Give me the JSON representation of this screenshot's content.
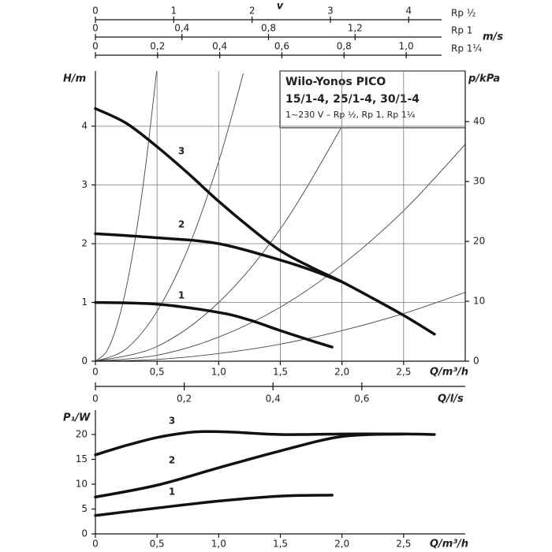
{
  "chart_data": [
    {
      "type": "line",
      "title": "Wilo-Yonos PICO",
      "subtitle": "15/1-4, 25/1-4, 30/1-4",
      "note": "1~230 V – Rp ½, Rp 1, Rp 1¼",
      "xlabel": "Q/m³/h",
      "ylabel": "H/m",
      "y2label": "p/kPa",
      "xlim": [
        0,
        3
      ],
      "xticks": [
        0,
        {
          "value": 0.5,
          "label": "0,5"
        },
        {
          "value": 1,
          "label": "1,0"
        },
        {
          "value": 1.5,
          "label": "1,5"
        },
        {
          "value": 2,
          "label": "2,0"
        },
        {
          "value": 2.5,
          "label": "2,5"
        }
      ],
      "ylim": [
        0,
        5
      ],
      "yticks": [
        0,
        1,
        2,
        3,
        4
      ],
      "y2lim": [
        0,
        49.05
      ],
      "y2ticks": [
        0,
        10,
        20,
        30,
        40
      ],
      "grid": true,
      "series": [
        {
          "name": "1",
          "color": "#111111",
          "x": [
            0,
            0.5,
            1,
            1.25,
            1.5,
            1.75,
            1.92
          ],
          "values": [
            1.0,
            0.97,
            0.83,
            0.7,
            0.52,
            0.35,
            0.24
          ]
        },
        {
          "name": "2",
          "color": "#111111",
          "x": [
            0,
            0.5,
            1,
            1.5,
            1.75,
            2
          ],
          "values": [
            2.17,
            2.1,
            2.0,
            1.72,
            1.55,
            1.35
          ]
        },
        {
          "name": "3",
          "color": "#111111",
          "x": [
            0,
            0.25,
            0.5,
            0.75,
            1,
            1.25,
            1.5,
            1.75,
            2,
            2.25,
            2.5,
            2.75
          ],
          "values": [
            4.3,
            4.05,
            3.65,
            3.2,
            2.72,
            2.28,
            1.88,
            1.6,
            1.35,
            1.07,
            0.78,
            0.46
          ]
        }
      ],
      "reference_curves": [
        {
          "color": "#444444",
          "x": [
            0,
            0.1,
            0.2,
            0.3,
            0.4,
            0.5
          ],
          "values": [
            0,
            0.2,
            0.8,
            1.8,
            3.2,
            5.0
          ]
        },
        {
          "color": "#444444",
          "x": [
            0,
            0.25,
            0.5,
            0.75,
            1,
            1.2
          ],
          "values": [
            0,
            0.21,
            0.85,
            1.91,
            3.4,
            4.9
          ]
        },
        {
          "color": "#444444",
          "x": [
            0,
            0.5,
            1,
            1.5,
            2,
            2.2
          ],
          "values": [
            0,
            0.25,
            1,
            2.25,
            4,
            4.84
          ]
        },
        {
          "color": "#444444",
          "x": [
            0,
            0.5,
            1,
            1.5,
            2,
            2.5,
            3
          ],
          "values": [
            0,
            0.1,
            0.41,
            0.92,
            1.64,
            2.56,
            3.69
          ]
        },
        {
          "color": "#444444",
          "x": [
            0,
            0.5,
            1,
            1.5,
            2,
            2.5,
            3
          ],
          "values": [
            0,
            0.03,
            0.13,
            0.29,
            0.52,
            0.81,
            1.17
          ]
        }
      ],
      "top_axes": [
        {
          "title": "v",
          "label": "Rp ½",
          "xlim": [
            0,
            4.42
          ],
          "xticks": [
            0,
            1,
            2,
            3,
            4
          ]
        },
        {
          "label": "Rp 1",
          "unit": "m/s",
          "xlim": [
            0,
            1.6
          ],
          "xticks": [
            0,
            {
              "value": 0.4,
              "label": "0,4"
            },
            {
              "value": 0.8,
              "label": "0,8"
            },
            {
              "value": 1.2,
              "label": "1,2"
            }
          ]
        },
        {
          "label": "Rp 1¼",
          "xlim": [
            0,
            1.114
          ],
          "xticks": [
            0,
            {
              "value": 0.2,
              "label": "0,2"
            },
            {
              "value": 0.4,
              "label": "0,4"
            },
            {
              "value": 0.6,
              "label": "0,6"
            },
            {
              "value": 0.8,
              "label": "0,8"
            },
            {
              "value": 1.0,
              "label": "1,0"
            }
          ]
        }
      ],
      "bottom_axis": {
        "label": "Q/l/s",
        "xlim": [
          0,
          0.833
        ],
        "xticks": [
          0,
          {
            "value": 0.2,
            "label": "0,2"
          },
          {
            "value": 0.4,
            "label": "0,4"
          },
          {
            "value": 0.6,
            "label": "0,6"
          }
        ]
      }
    },
    {
      "type": "line",
      "xlabel": "Q/m³/h",
      "ylabel": "P₁/W",
      "xlim": [
        0,
        3
      ],
      "xticks": [
        0,
        {
          "value": 0.5,
          "label": "0,5"
        },
        {
          "value": 1,
          "label": "1,0"
        },
        {
          "value": 1.5,
          "label": "1,5"
        },
        {
          "value": 2,
          "label": "2,0"
        },
        {
          "value": 2.5,
          "label": "2,5"
        }
      ],
      "ylim": [
        0,
        25
      ],
      "yticks": [
        0,
        5,
        10,
        15,
        20
      ],
      "grid": false,
      "series": [
        {
          "name": "1",
          "color": "#111111",
          "x": [
            0,
            0.5,
            1,
            1.5,
            1.92
          ],
          "values": [
            3.7,
            5.2,
            6.6,
            7.6,
            7.8
          ]
        },
        {
          "name": "2",
          "color": "#111111",
          "x": [
            0,
            0.5,
            1,
            1.5,
            2,
            2.5
          ],
          "values": [
            7.4,
            9.8,
            13.3,
            16.7,
            19.6,
            20.1
          ]
        },
        {
          "name": "3",
          "color": "#111111",
          "x": [
            0,
            0.25,
            0.5,
            0.75,
            0.9,
            1.1,
            1.5,
            2,
            2.5,
            2.75
          ],
          "values": [
            15.9,
            17.8,
            19.4,
            20.4,
            20.6,
            20.5,
            20.0,
            20.1,
            20.1,
            20.0
          ]
        }
      ]
    }
  ]
}
